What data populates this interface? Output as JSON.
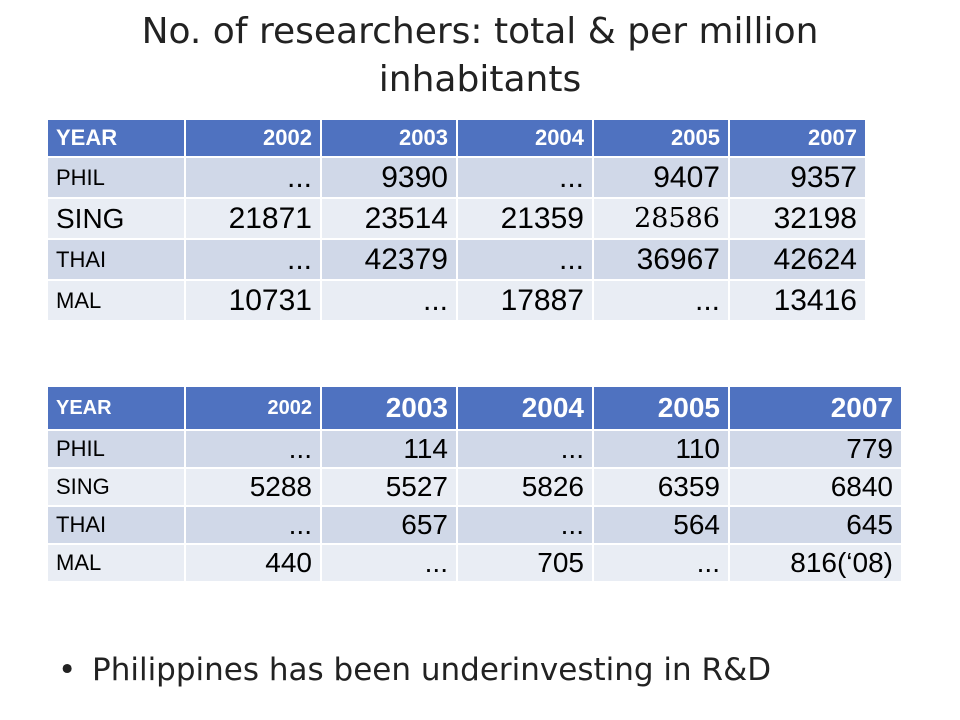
{
  "slide": {
    "title": "No. of researchers: total & per million inhabitants",
    "bullet": "Philippines has been underinvesting in R&D",
    "bullet_marker": "•"
  },
  "table1": {
    "headers": [
      "YEAR",
      "2002",
      "2003",
      "2004",
      "2005",
      "2007"
    ],
    "rows": [
      [
        "PHIL",
        "...",
        "9390",
        "...",
        "9407",
        "9357"
      ],
      [
        "SING",
        "21871",
        "23514",
        "21359",
        "28586",
        "32198"
      ],
      [
        "THAI",
        "...",
        "42379",
        "...",
        "36967",
        "42624"
      ],
      [
        "MAL",
        "10731",
        "...",
        "17887",
        "...",
        "13416"
      ]
    ]
  },
  "table2": {
    "headers": [
      "YEAR",
      "2002",
      "2003",
      "2004",
      "2005",
      "2007"
    ],
    "rows": [
      [
        "PHIL",
        "...",
        "114",
        "...",
        "110",
        "779"
      ],
      [
        "SING",
        "5288",
        "5527",
        "5826",
        "6359",
        "6840"
      ],
      [
        "THAI",
        "...",
        "657",
        "...",
        "564",
        "645"
      ],
      [
        "MAL",
        "440",
        "...",
        "705",
        "...",
        "816(‘08)"
      ]
    ]
  },
  "colors": {
    "header_bg": "#4f72c0",
    "row_odd": "#d0d8e8",
    "row_even": "#e9edf4"
  }
}
